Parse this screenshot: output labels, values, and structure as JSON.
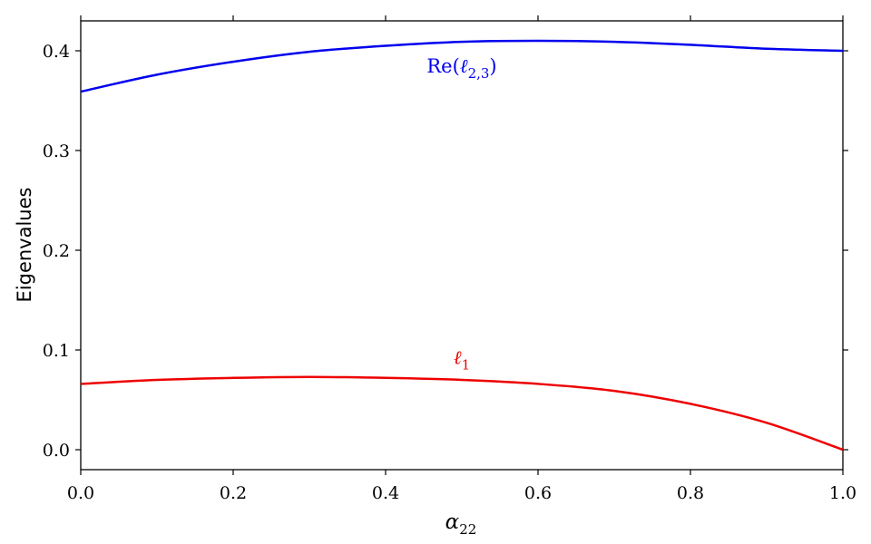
{
  "chart_data": {
    "type": "line",
    "title": "",
    "xlabel": {
      "base": "α",
      "sub": "22"
    },
    "ylabel": "Eigenvalues",
    "xlim": [
      0.0,
      1.0
    ],
    "ylim": [
      -0.02,
      0.43
    ],
    "x_ticks": [
      "0.0",
      "0.2",
      "0.4",
      "0.6",
      "0.8",
      "1.0"
    ],
    "y_ticks": [
      "0.0",
      "0.1",
      "0.2",
      "0.3",
      "0.4"
    ],
    "grid": false,
    "legend": "none",
    "x": [
      0.0,
      0.1,
      0.2,
      0.3,
      0.4,
      0.5,
      0.6,
      0.7,
      0.8,
      0.9,
      1.0
    ],
    "series": [
      {
        "name": {
          "prefix": "Re(",
          "base": "ℓ",
          "sub": "2,3",
          "suffix": ")"
        },
        "color": "#0000ee",
        "label_at": [
          0.5,
          0.378
        ],
        "values": [
          0.359,
          0.376,
          0.389,
          0.399,
          0.405,
          0.409,
          0.41,
          0.409,
          0.406,
          0.402,
          0.4
        ]
      },
      {
        "name": {
          "prefix": "",
          "base": "ℓ",
          "sub": "1",
          "suffix": ""
        },
        "color": "#ee0000",
        "label_at": [
          0.5,
          0.086
        ],
        "values": [
          0.066,
          0.07,
          0.072,
          0.073,
          0.072,
          0.07,
          0.066,
          0.059,
          0.046,
          0.027,
          0.0
        ]
      }
    ]
  }
}
